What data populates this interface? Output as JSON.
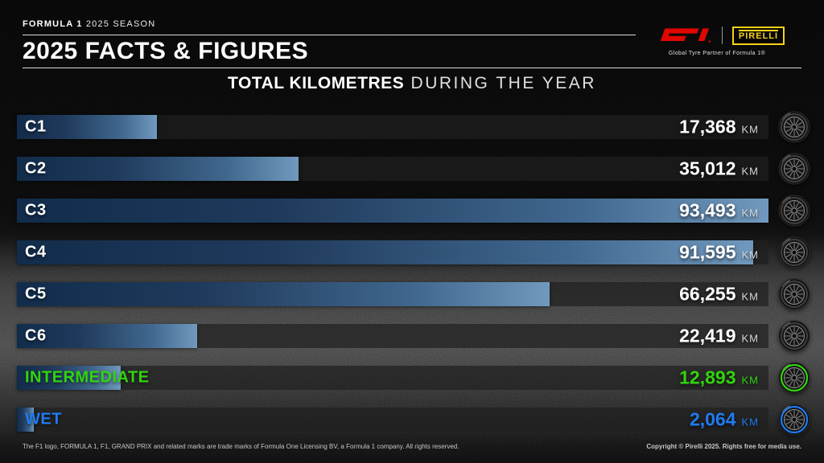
{
  "header": {
    "eyebrow_bold": "FORMULA 1",
    "eyebrow_rest": " 2025 SEASON",
    "title": "2025 FACTS & FIGURES",
    "pirelli_label": "PIRELLI",
    "partner_caption": "Global Tyre Partner of Formula 1®",
    "f1_brand_color": "#e10600",
    "pirelli_brand_color": "#f7d117"
  },
  "chart_title": {
    "bold": "TOTAL KILOMETRES",
    "light": " DURING THE YEAR"
  },
  "chart_data": {
    "type": "bar",
    "orientation": "horizontal",
    "title": "TOTAL KILOMETRES DURING THE YEAR",
    "unit": "KM",
    "xlim": [
      0,
      93493
    ],
    "grid": false,
    "legend": "none",
    "categories": [
      "C1",
      "C2",
      "C3",
      "C4",
      "C5",
      "C6",
      "INTERMEDIATE",
      "WET"
    ],
    "values": [
      17368,
      35012,
      93493,
      91595,
      66255,
      22419,
      12893,
      2064
    ],
    "bar_gradient": [
      "#122c4b",
      "#7199bd"
    ],
    "rows": [
      {
        "label": "C1",
        "value": 17368,
        "display": "17,368",
        "unit": "KM",
        "color": "",
        "ring": "#3d3d3d",
        "tyre": "slick-tyre"
      },
      {
        "label": "C2",
        "value": 35012,
        "display": "35,012",
        "unit": "KM",
        "color": "",
        "ring": "#3d3d3d",
        "tyre": "slick-tyre"
      },
      {
        "label": "C3",
        "value": 93493,
        "display": "93,493",
        "unit": "KM",
        "color": "",
        "ring": "#3d3d3d",
        "tyre": "slick-tyre"
      },
      {
        "label": "C4",
        "value": 91595,
        "display": "91,595",
        "unit": "KM",
        "color": "",
        "ring": "#3d3d3d",
        "tyre": "slick-tyre"
      },
      {
        "label": "C5",
        "value": 66255,
        "display": "66,255",
        "unit": "KM",
        "color": "",
        "ring": "#3d3d3d",
        "tyre": "slick-tyre"
      },
      {
        "label": "C6",
        "value": 22419,
        "display": "22,419",
        "unit": "KM",
        "color": "",
        "ring": "#3d3d3d",
        "tyre": "slick-tyre"
      },
      {
        "label": "INTERMEDIATE",
        "value": 12893,
        "display": "12,893",
        "unit": "KM",
        "color": "#31d50c",
        "ring": "#31d50c",
        "tyre": "intermediate-tyre"
      },
      {
        "label": "WET",
        "value": 2064,
        "display": "2,064",
        "unit": "KM",
        "color": "#1f7bf2",
        "ring": "#1f7bf2",
        "tyre": "wet-tyre"
      }
    ]
  },
  "footer": {
    "left": "The F1 logo, FORMULA 1, F1, GRAND PRIX and related marks are trade marks of Formula One Licensing BV, a Formula 1 company. All rights reserved.",
    "right": "Copyright © Pirelli 2025. Rights free for media use."
  }
}
